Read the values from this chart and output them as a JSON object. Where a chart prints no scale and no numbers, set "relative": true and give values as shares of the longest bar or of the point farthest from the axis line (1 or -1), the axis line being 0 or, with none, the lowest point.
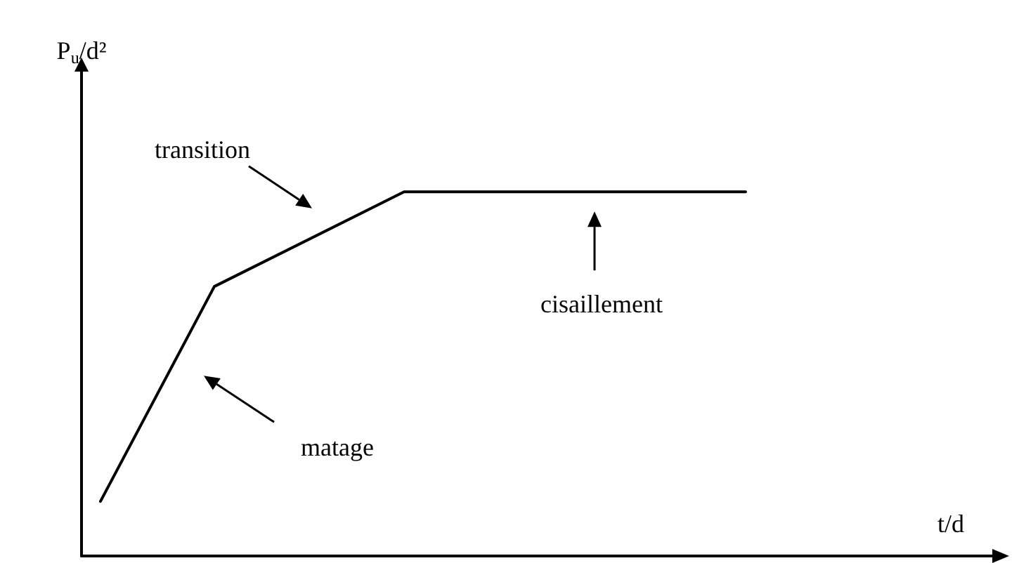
{
  "chart_data": {
    "type": "line",
    "relative": true,
    "xlabel": "t/d",
    "ylabel": "P$_{u}$/d²",
    "categories": [
      null,
      null,
      null,
      null,
      null,
      null,
      null,
      null,
      null,
      null,
      null,
      null,
      null,
      null,
      null,
      null,
      null,
      null,
      null,
      null,
      null,
      null,
      null,
      null
    ],
    "series": [
      {
        "color": "#000000",
        "values": [
          0.15,
          null,
          null,
          0.74,
          null,
          null,
          null,
          null,
          1,
          null,
          null,
          null,
          null,
          null,
          null,
          null,
          null,
          1,
          null,
          null,
          null,
          null,
          null,
          null
        ]
      }
    ],
    "annotations": [
      "matage",
      "transition",
      "cisaillement"
    ],
    "marker": "none",
    "line_style": "solid",
    "grid": false,
    "tick_labels": false
  }
}
